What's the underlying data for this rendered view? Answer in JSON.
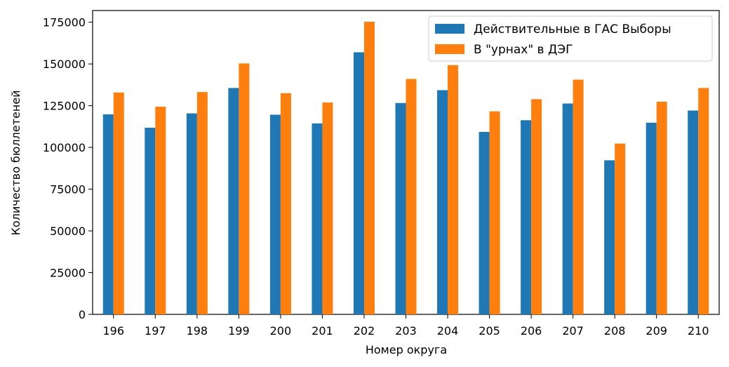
{
  "chart_data": {
    "type": "bar",
    "title": "",
    "xlabel": "Номер округа",
    "ylabel": "Количество бюллетеней",
    "ylim": [
      0,
      182000
    ],
    "yticks": [
      0,
      25000,
      50000,
      75000,
      100000,
      125000,
      150000,
      175000
    ],
    "categories": [
      "196",
      "197",
      "198",
      "199",
      "200",
      "201",
      "202",
      "203",
      "204",
      "205",
      "206",
      "207",
      "208",
      "209",
      "210"
    ],
    "series": [
      {
        "name": "Действительные в ГАС Выборы",
        "color": "#1f77b4",
        "values": [
          119800,
          111800,
          120400,
          135600,
          119600,
          114400,
          157000,
          126600,
          134300,
          109300,
          116300,
          126300,
          92300,
          114800,
          122100
        ]
      },
      {
        "name": "В \"урнах\" в ДЭГ",
        "color": "#ff7f0e",
        "values": [
          132900,
          124400,
          133200,
          150300,
          132500,
          126900,
          175300,
          141000,
          149300,
          121600,
          128900,
          140600,
          102300,
          127400,
          135600
        ]
      }
    ],
    "grid": false,
    "legend": "top-right"
  }
}
